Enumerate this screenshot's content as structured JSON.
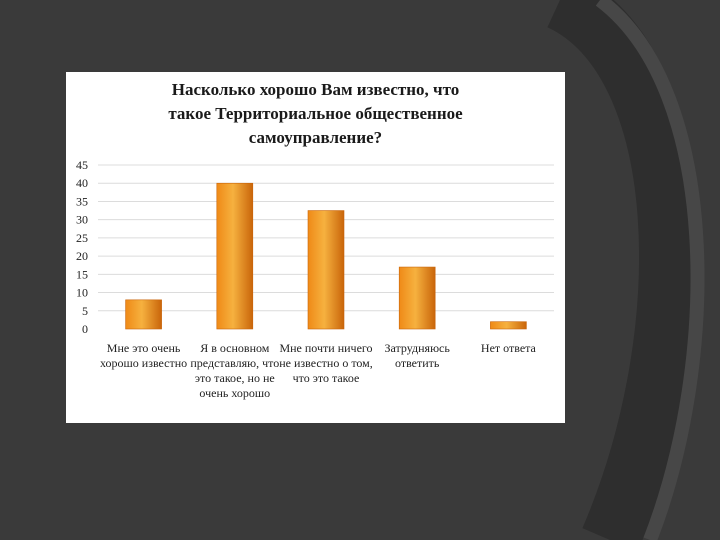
{
  "colors": {
    "background": "#3a3a3a",
    "panel": "#ffffff",
    "bar_top": "#f6b13f",
    "bar_mid": "#ef8a17",
    "bar_edge": "#c9650a",
    "grid": "#dcdcdc"
  },
  "chart_data": {
    "type": "bar",
    "title_lines": [
      "Насколько хорошо Вам известно, что",
      "такое Территориальное общественное",
      "самоуправление?"
    ],
    "categories": [
      "Мне это очень хорошо известно",
      "Я в основном представляю, что это такое, но не очень хорошо",
      "Мне почти ничего не известно о том, что это такое",
      "Затрудняюсь ответить",
      "Нет ответа"
    ],
    "values": [
      8,
      40,
      32.5,
      17,
      2
    ],
    "ylim": [
      0,
      45
    ],
    "yticks": [
      0,
      5,
      10,
      15,
      20,
      25,
      30,
      35,
      40,
      45
    ],
    "grid": true,
    "legend": "none"
  }
}
